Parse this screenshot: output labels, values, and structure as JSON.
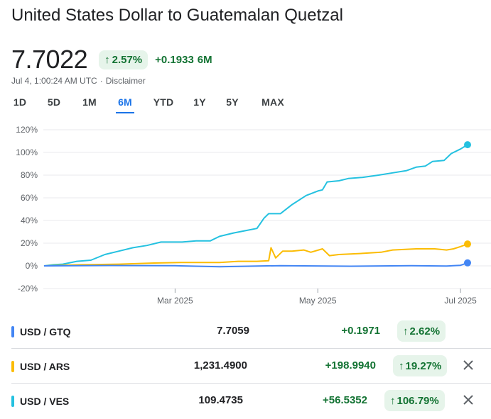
{
  "header": {
    "title": "United States Dollar to Guatemalan Quetzal",
    "price": "7.7022",
    "change_pct": "2.57%",
    "change_arrow": "↑",
    "change_abs": "+0.1933",
    "change_period": "6M",
    "timestamp": "Jul 4, 1:00:24 AM UTC",
    "separator": "·",
    "disclaimer": "Disclaimer"
  },
  "tabs": [
    {
      "label": "1D"
    },
    {
      "label": "5D"
    },
    {
      "label": "1M"
    },
    {
      "label": "6M",
      "active": true
    },
    {
      "label": "YTD"
    },
    {
      "label": "1Y"
    },
    {
      "label": "5Y"
    },
    {
      "label": "MAX"
    }
  ],
  "colors": {
    "gtq": "#4285f4",
    "ars": "#fbbc04",
    "ves": "#24c1e0",
    "positive": "#137333",
    "positive_bg": "#e6f4ea",
    "accent": "#1a73e8",
    "grid": "#e8eaed",
    "axis_text": "#5f6368"
  },
  "chart_data": {
    "type": "line",
    "y_unit": "%",
    "ylim": [
      -20,
      120
    ],
    "yticks": [
      "120%",
      "100%",
      "80%",
      "60%",
      "40%",
      "20%",
      "0%",
      "-20%"
    ],
    "ytick_values": [
      120,
      100,
      80,
      60,
      40,
      20,
      0,
      -20
    ],
    "x_range": [
      "2025-01-04",
      "2025-07-04"
    ],
    "xticks": [
      {
        "label": "Mar 2025",
        "date": "2025-03-01"
      },
      {
        "label": "May 2025",
        "date": "2025-05-01"
      },
      {
        "label": "Jul 2025",
        "date": "2025-07-01"
      }
    ],
    "grid": true,
    "series": [
      {
        "name": "USD / VES",
        "color_key": "ves",
        "points": [
          [
            "2025-01-04",
            0
          ],
          [
            "2025-01-08",
            1
          ],
          [
            "2025-01-12",
            1.5
          ],
          [
            "2025-01-18",
            4
          ],
          [
            "2025-01-24",
            5
          ],
          [
            "2025-01-30",
            10
          ],
          [
            "2025-02-05",
            13
          ],
          [
            "2025-02-11",
            16
          ],
          [
            "2025-02-17",
            18
          ],
          [
            "2025-02-23",
            21
          ],
          [
            "2025-02-28",
            21
          ],
          [
            "2025-03-04",
            21
          ],
          [
            "2025-03-10",
            22
          ],
          [
            "2025-03-16",
            22
          ],
          [
            "2025-03-20",
            26
          ],
          [
            "2025-03-26",
            29
          ],
          [
            "2025-03-31",
            31
          ],
          [
            "2025-04-05",
            33
          ],
          [
            "2025-04-08",
            42
          ],
          [
            "2025-04-10",
            46
          ],
          [
            "2025-04-15",
            46
          ],
          [
            "2025-04-20",
            54
          ],
          [
            "2025-04-26",
            62
          ],
          [
            "2025-05-01",
            66
          ],
          [
            "2025-05-03",
            67
          ],
          [
            "2025-05-05",
            74
          ],
          [
            "2025-05-10",
            75
          ],
          [
            "2025-05-14",
            77
          ],
          [
            "2025-05-20",
            78
          ],
          [
            "2025-05-27",
            80
          ],
          [
            "2025-06-02",
            82
          ],
          [
            "2025-06-08",
            84
          ],
          [
            "2025-06-12",
            87
          ],
          [
            "2025-06-16",
            88
          ],
          [
            "2025-06-19",
            92
          ],
          [
            "2025-06-24",
            93
          ],
          [
            "2025-06-27",
            99
          ],
          [
            "2025-07-01",
            103
          ],
          [
            "2025-07-04",
            106.79
          ]
        ]
      },
      {
        "name": "USD / ARS",
        "color_key": "ars",
        "points": [
          [
            "2025-01-04",
            0
          ],
          [
            "2025-01-20",
            1
          ],
          [
            "2025-02-05",
            1.5
          ],
          [
            "2025-02-20",
            2.5
          ],
          [
            "2025-03-05",
            3
          ],
          [
            "2025-03-20",
            3
          ],
          [
            "2025-03-28",
            4
          ],
          [
            "2025-04-05",
            4
          ],
          [
            "2025-04-10",
            4.5
          ],
          [
            "2025-04-11",
            16
          ],
          [
            "2025-04-13",
            7
          ],
          [
            "2025-04-16",
            13
          ],
          [
            "2025-04-20",
            13
          ],
          [
            "2025-04-25",
            14
          ],
          [
            "2025-04-28",
            12
          ],
          [
            "2025-05-03",
            15
          ],
          [
            "2025-05-06",
            9
          ],
          [
            "2025-05-10",
            10
          ],
          [
            "2025-05-20",
            11
          ],
          [
            "2025-05-28",
            12
          ],
          [
            "2025-06-02",
            14
          ],
          [
            "2025-06-12",
            15
          ],
          [
            "2025-06-20",
            15
          ],
          [
            "2025-06-25",
            14
          ],
          [
            "2025-06-28",
            15
          ],
          [
            "2025-07-01",
            17
          ],
          [
            "2025-07-04",
            19.27
          ]
        ]
      },
      {
        "name": "USD / GTQ",
        "color_key": "gtq",
        "points": [
          [
            "2025-01-04",
            0
          ],
          [
            "2025-02-01",
            0.3
          ],
          [
            "2025-03-01",
            0.1
          ],
          [
            "2025-03-20",
            -0.8
          ],
          [
            "2025-04-15",
            0.2
          ],
          [
            "2025-05-15",
            -0.3
          ],
          [
            "2025-06-10",
            0.1
          ],
          [
            "2025-06-25",
            -0.2
          ],
          [
            "2025-07-01",
            0.5
          ],
          [
            "2025-07-04",
            2.62
          ]
        ]
      }
    ]
  },
  "comparisons": [
    {
      "pair": "USD / GTQ",
      "color_key": "gtq",
      "value": "7.7059",
      "change_abs": "+0.1971",
      "arrow": "↑",
      "change_pct": "2.62%",
      "removable": false
    },
    {
      "pair": "USD / ARS",
      "color_key": "ars",
      "value": "1,231.4900",
      "change_abs": "+198.9940",
      "arrow": "↑",
      "change_pct": "19.27%",
      "removable": true
    },
    {
      "pair": "USD / VES",
      "color_key": "ves",
      "value": "109.4735",
      "change_abs": "+56.5352",
      "arrow": "↑",
      "change_pct": "106.79%",
      "removable": true
    }
  ]
}
